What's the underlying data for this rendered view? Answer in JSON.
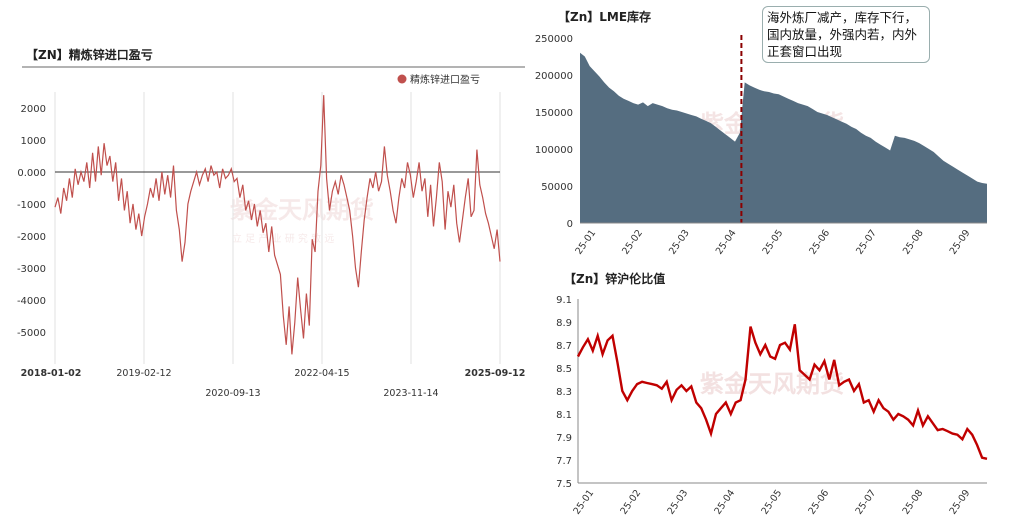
{
  "panels": {
    "left_title": "【ZN】精炼锌进口盈亏",
    "left_legend": "精炼锌进口盈亏",
    "top_right_title": "【Zn】LME库存",
    "bottom_right_title": "【Zn】锌沪伦比值",
    "annotation": "海外炼厂减产，库存下行，国内放量，外强内若，内外正套窗口出现"
  },
  "watermarks": [
    "紫金天风期货",
    "立 足 产 业  研 究 致 远",
    "紫金天风期货",
    "紫金天风期货"
  ],
  "colors": {
    "red_line": "#c0504d",
    "dark_red_line": "#c00000",
    "area_fill": "#556d80",
    "marker": "#8b0000"
  },
  "chart_data": [
    {
      "type": "line",
      "title": "【ZN】精炼锌进口盈亏",
      "x_tick_labels": [
        "2018-01-02",
        "2019-02-12",
        "2020-09-13",
        "2022-04-15",
        "2023-11-14",
        "2025-09-12"
      ],
      "ylim": [
        -6000,
        2500
      ],
      "y_ticks": [
        "2000",
        "1000",
        "0.000",
        "-1000",
        "-2000",
        "-3000",
        "-4000",
        "-5000"
      ],
      "grid": "vertical",
      "legend": "top-right",
      "series": [
        {
          "name": "精炼锌进口盈亏",
          "values": [
            -1100,
            -800,
            -1300,
            -500,
            -900,
            -200,
            -800,
            100,
            -400,
            0,
            -300,
            300,
            -500,
            600,
            -300,
            800,
            -100,
            900,
            200,
            500,
            -300,
            300,
            -900,
            -200,
            -1200,
            -600,
            -1600,
            -1000,
            -1800,
            -1300,
            -2000,
            -1400,
            -1000,
            -500,
            -800,
            -200,
            -900,
            0,
            -700,
            -100,
            -800,
            200,
            -1200,
            -1800,
            -2800,
            -2200,
            -1000,
            -600,
            -300,
            0,
            -400,
            -100,
            100,
            -300,
            200,
            -100,
            0,
            -500,
            100,
            -200,
            -100,
            100,
            -300,
            -200,
            -800,
            -400,
            -1200,
            -900,
            -1500,
            -1000,
            -1700,
            -1200,
            -1900,
            -1600,
            -2500,
            -1700,
            -2600,
            -2900,
            -3200,
            -4500,
            -5400,
            -4200,
            -5700,
            -4700,
            -3300,
            -4300,
            -5200,
            -3800,
            -4800,
            -2100,
            -2500,
            -600,
            200,
            2400,
            -200,
            -1200,
            -600,
            -300,
            -700,
            -100,
            -400,
            -800,
            -1200,
            -2000,
            -3000,
            -3600,
            -2500,
            -1500,
            -800,
            -200,
            -500,
            0,
            -600,
            -300,
            800,
            -100,
            -600,
            -1200,
            -1600,
            -800,
            -200,
            -500,
            300,
            -100,
            -800,
            -300,
            300,
            -600,
            -200,
            -1400,
            -400,
            -1700,
            -800,
            300,
            -300,
            -1800,
            -600,
            -1100,
            -400,
            -1600,
            -2200,
            -1500,
            -800,
            -200,
            -1400,
            -1200,
            700,
            -400,
            -800,
            -1300,
            -1600,
            -2000,
            -2400,
            -1800,
            -2800
          ]
        }
      ]
    },
    {
      "type": "area",
      "title": "【Zn】LME库存",
      "x_tick_labels": [
        "25-01",
        "25-02",
        "25-03",
        "25-04",
        "25-05",
        "25-06",
        "25-07",
        "25-08",
        "25-09"
      ],
      "ylim": [
        0,
        250000
      ],
      "y_ticks": [
        "250000",
        "200000",
        "150000",
        "100000",
        "50000",
        "0"
      ],
      "series": [
        {
          "name": "LME库存",
          "values": [
            230000,
            225000,
            212000,
            205000,
            198000,
            190000,
            183000,
            178000,
            172000,
            168000,
            165000,
            162000,
            160000,
            163000,
            158000,
            162000,
            160000,
            158000,
            155000,
            153000,
            152000,
            150000,
            148000,
            146000,
            144000,
            141000,
            138000,
            135000,
            130000,
            125000,
            120000,
            115000,
            110000,
            122000,
            190000,
            186000,
            183000,
            180000,
            178000,
            177000,
            175000,
            174000,
            171000,
            168000,
            165000,
            162000,
            160000,
            158000,
            154000,
            150000,
            148000,
            146000,
            143000,
            140000,
            137000,
            134000,
            130000,
            127000,
            122000,
            118000,
            115000,
            110000,
            106000,
            102000,
            98000,
            118000,
            116000,
            115000,
            113000,
            111000,
            108000,
            104000,
            100000,
            96000,
            90000,
            84000,
            80000,
            76000,
            72000,
            68000,
            64000,
            60000,
            56000,
            54000,
            53000
          ]
        }
      ],
      "annotation_line_at": "25-04"
    },
    {
      "type": "line",
      "title": "【Zn】锌沪伦比值",
      "x_tick_labels": [
        "25-01",
        "25-02",
        "25-03",
        "25-04",
        "25-05",
        "25-06",
        "25-07",
        "25-08",
        "25-09"
      ],
      "ylim": [
        7.5,
        9.1
      ],
      "y_ticks": [
        "9.1",
        "8.9",
        "8.7",
        "8.5",
        "8.3",
        "8.1",
        "7.9",
        "7.7",
        "7.5"
      ],
      "series": [
        {
          "name": "锌沪伦比值",
          "values": [
            8.6,
            8.68,
            8.75,
            8.65,
            8.78,
            8.62,
            8.74,
            8.78,
            8.55,
            8.3,
            8.22,
            8.3,
            8.36,
            8.38,
            8.37,
            8.36,
            8.35,
            8.32,
            8.38,
            8.22,
            8.31,
            8.35,
            8.3,
            8.34,
            8.2,
            8.15,
            8.05,
            7.93,
            8.1,
            8.15,
            8.2,
            8.1,
            8.2,
            8.22,
            8.4,
            8.86,
            8.72,
            8.62,
            8.7,
            8.6,
            8.58,
            8.7,
            8.72,
            8.66,
            8.88,
            8.48,
            8.44,
            8.4,
            8.53,
            8.48,
            8.56,
            8.4,
            8.57,
            8.35,
            8.38,
            8.4,
            8.3,
            8.36,
            8.2,
            8.22,
            8.12,
            8.22,
            8.15,
            8.12,
            8.05,
            8.1,
            8.08,
            8.05,
            8.0,
            8.13,
            8.0,
            8.08,
            8.02,
            7.96,
            7.97,
            7.95,
            7.93,
            7.92,
            7.88,
            7.97,
            7.92,
            7.83,
            7.72,
            7.71
          ]
        }
      ]
    }
  ]
}
